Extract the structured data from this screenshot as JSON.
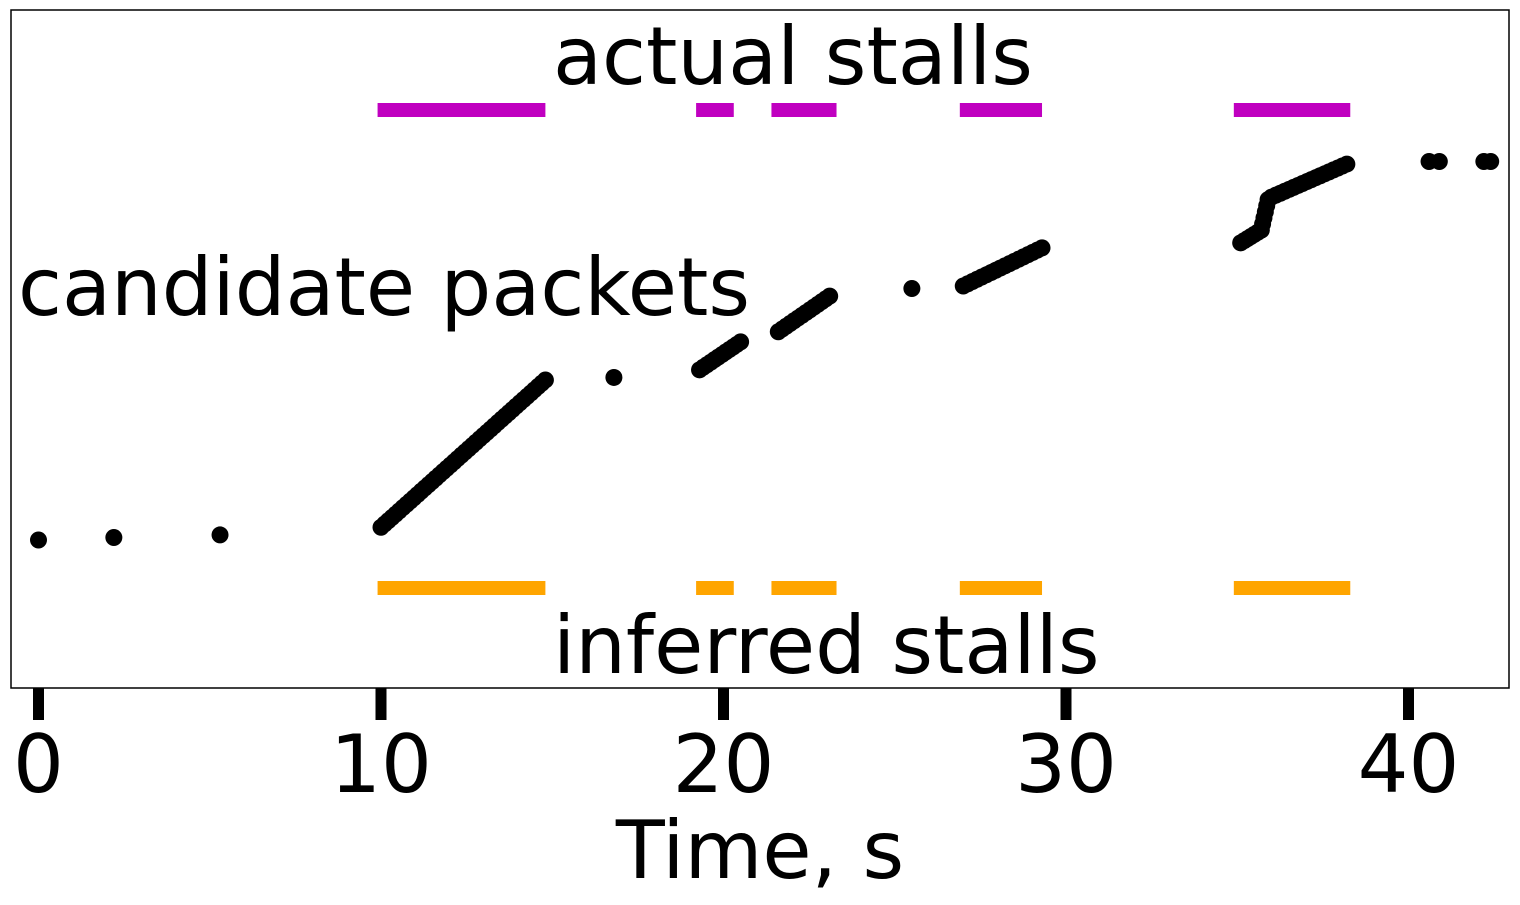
{
  "chart_data": {
    "type": "scatter",
    "xlabel": "Time, s",
    "ylabel": "",
    "xlim": [
      -0.8,
      43
    ],
    "xticks": [
      0,
      10,
      20,
      30,
      40
    ],
    "yticks": [],
    "grid": false,
    "annotations": {
      "actual": "actual stalls",
      "candidates": "candidate packets",
      "inferred": "inferred stalls"
    },
    "colors": {
      "actual_stalls": "#c000c0",
      "inferred_stalls": "#ffa500",
      "packets": "#000000"
    },
    "actual_stalls": [
      [
        9.9,
        14.8
      ],
      [
        19.2,
        20.3
      ],
      [
        21.4,
        23.3
      ],
      [
        26.9,
        29.3
      ],
      [
        34.9,
        38.3
      ]
    ],
    "inferred_stalls": [
      [
        9.9,
        14.8
      ],
      [
        19.2,
        20.3
      ],
      [
        21.4,
        23.3
      ],
      [
        26.9,
        29.3
      ],
      [
        34.9,
        38.3
      ]
    ],
    "packet_segments": [
      {
        "x0": 0.0,
        "x1": 0.0,
        "y0": 0.0,
        "y1": 0.0,
        "n": 1
      },
      {
        "x0": 2.2,
        "x1": 2.2,
        "y0": 0.01,
        "y1": 0.01,
        "n": 1
      },
      {
        "x0": 5.3,
        "x1": 5.3,
        "y0": 0.02,
        "y1": 0.02,
        "n": 1
      },
      {
        "x0": 10.0,
        "x1": 14.8,
        "y0": 0.05,
        "y1": 0.63,
        "n": 46
      },
      {
        "x0": 16.8,
        "x1": 16.8,
        "y0": 0.64,
        "y1": 0.64,
        "n": 1
      },
      {
        "x0": 19.3,
        "x1": 20.5,
        "y0": 0.67,
        "y1": 0.78,
        "n": 12
      },
      {
        "x0": 21.6,
        "x1": 23.1,
        "y0": 0.82,
        "y1": 0.96,
        "n": 14
      },
      {
        "x0": 25.5,
        "x1": 25.5,
        "y0": 0.99,
        "y1": 0.99,
        "n": 1
      },
      {
        "x0": 27.0,
        "x1": 29.3,
        "y0": 1.0,
        "y1": 1.15,
        "n": 18
      },
      {
        "x0": 35.1,
        "x1": 35.7,
        "y0": 1.17,
        "y1": 1.22,
        "n": 7
      },
      {
        "x0": 35.7,
        "x1": 35.9,
        "y0": 1.22,
        "y1": 1.34,
        "n": 6
      },
      {
        "x0": 36.0,
        "x1": 38.2,
        "y0": 1.35,
        "y1": 1.48,
        "n": 18
      },
      {
        "x0": 40.6,
        "x1": 40.9,
        "y0": 1.49,
        "y1": 1.49,
        "n": 2
      },
      {
        "x0": 42.2,
        "x1": 42.4,
        "y0": 1.49,
        "y1": 1.49,
        "n": 2
      }
    ]
  }
}
